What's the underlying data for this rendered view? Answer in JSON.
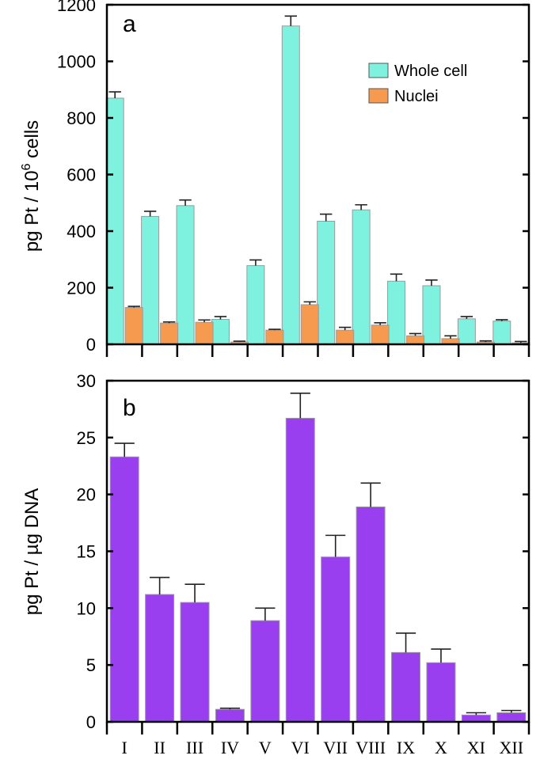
{
  "chart_data": [
    {
      "type": "bar",
      "panel_label": "a",
      "ylabel": "pg Pt / 10",
      "ylabel_sup": "6",
      "ylabel_tail": " cells",
      "ylim": [
        0,
        1200
      ],
      "yticks": [
        0,
        200,
        400,
        600,
        800,
        1000,
        1200
      ],
      "categories": [
        "I",
        "II",
        "III",
        "IV",
        "V",
        "VI",
        "VII",
        "VIII",
        "IX",
        "X",
        "XI",
        "XII"
      ],
      "series": [
        {
          "name": "Whole cell",
          "color": "#7ff2df",
          "values": [
            870,
            452,
            490,
            88,
            278,
            1125,
            435,
            475,
            223,
            207,
            90,
            82
          ],
          "errors": [
            22,
            18,
            20,
            10,
            20,
            35,
            25,
            18,
            25,
            20,
            8,
            5
          ]
        },
        {
          "name": "Nuclei",
          "color": "#f59a4e",
          "values": [
            130,
            75,
            78,
            8,
            50,
            140,
            50,
            68,
            30,
            20,
            8,
            5
          ],
          "errors": [
            4,
            4,
            8,
            3,
            3,
            10,
            10,
            8,
            8,
            10,
            4,
            5
          ]
        }
      ]
    },
    {
      "type": "bar",
      "panel_label": "b",
      "ylabel": "pg Pt / µg DNA",
      "ylim": [
        0,
        30
      ],
      "yticks": [
        0,
        5,
        10,
        15,
        20,
        25,
        30
      ],
      "categories": [
        "I",
        "II",
        "III",
        "IV",
        "V",
        "VI",
        "VII",
        "VIII",
        "IX",
        "X",
        "XI",
        "XII"
      ],
      "series": [
        {
          "name": "pg Pt / µg DNA",
          "color": "#9a3ff0",
          "values": [
            23.3,
            11.2,
            10.5,
            1.1,
            8.9,
            26.7,
            14.5,
            18.9,
            6.1,
            5.2,
            0.6,
            0.8
          ],
          "errors": [
            1.2,
            1.5,
            1.6,
            0.1,
            1.1,
            2.2,
            1.9,
            2.1,
            1.7,
            1.2,
            0.2,
            0.2
          ]
        }
      ]
    }
  ]
}
